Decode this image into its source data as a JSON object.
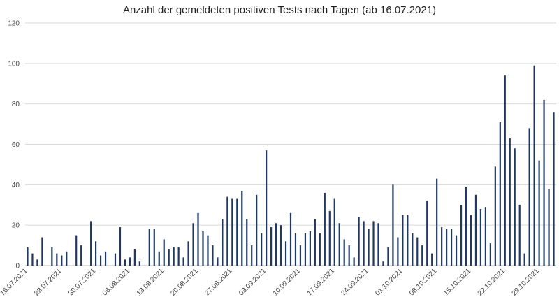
{
  "chart_data": {
    "type": "bar",
    "title": "Anzahl der gemeldeten positiven Tests nach Tagen (ab 16.07.2021)",
    "xlabel": "",
    "ylabel": "",
    "ylim": [
      0,
      120
    ],
    "yticks": [
      0,
      20,
      40,
      60,
      80,
      100,
      120
    ],
    "grid": "horizontal",
    "bar_color": "#1f3864",
    "x_tick_labels": [
      "16.07.2021",
      "23.07.2021",
      "30.07.2021",
      "06.08.2021",
      "13.08.2021",
      "20.08.2021",
      "27.08.2021",
      "03.09.2021",
      "10.09.2021",
      "17.09.2021",
      "24.09.2021",
      "01.10.2021",
      "08.10.2021",
      "15.10.2021",
      "22.10.2021",
      "29.10.2021"
    ],
    "start_date": "16.07.2021",
    "values": [
      9,
      6,
      3,
      14,
      0,
      9,
      6,
      5,
      7,
      0,
      15,
      10,
      0,
      22,
      12,
      5,
      7,
      0,
      6,
      19,
      3,
      4,
      8,
      2,
      0,
      18,
      18,
      7,
      13,
      8,
      9,
      9,
      4,
      12,
      21,
      26,
      17,
      15,
      10,
      4,
      23,
      34,
      33,
      33,
      37,
      23,
      10,
      35,
      16,
      57,
      19,
      21,
      20,
      12,
      26,
      16,
      10,
      16,
      17,
      23,
      16,
      36,
      27,
      33,
      21,
      13,
      10,
      4,
      24,
      22,
      18,
      22,
      21,
      2,
      9,
      40,
      14,
      25,
      25,
      16,
      14,
      10,
      32,
      6,
      43,
      19,
      18,
      18,
      15,
      30,
      39,
      25,
      35,
      28,
      29,
      11,
      49,
      71,
      94,
      63,
      58,
      30,
      6,
      68,
      99,
      52,
      82,
      38,
      76
    ]
  }
}
